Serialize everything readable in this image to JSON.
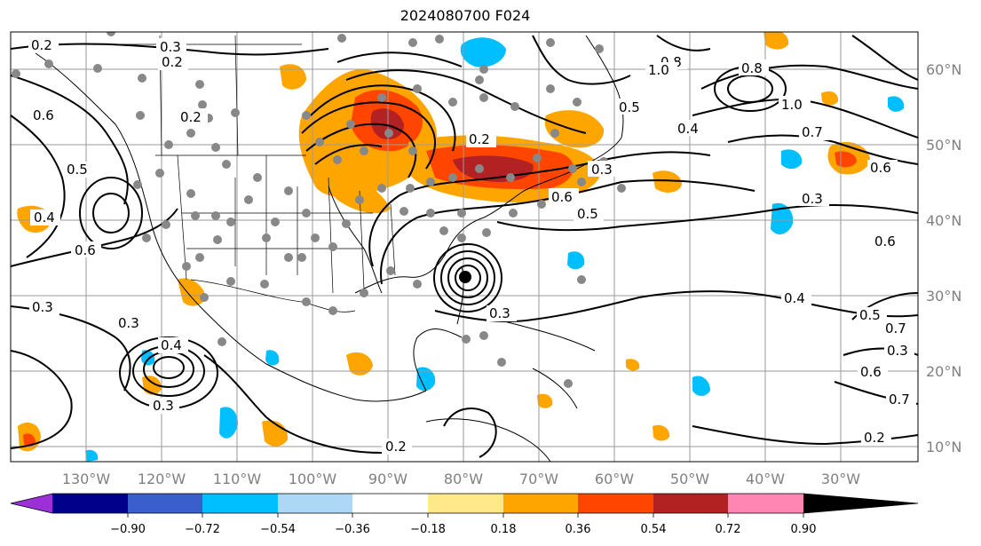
{
  "title": "2024080700 F024",
  "map": {
    "lon_labels": [
      "130°W",
      "120°W",
      "110°W",
      "100°W",
      "90°W",
      "80°W",
      "70°W",
      "60°W",
      "50°W",
      "40°W",
      "30°W"
    ],
    "lat_labels": [
      "60°N",
      "50°N",
      "40°N",
      "30°N",
      "20°N",
      "10°N"
    ],
    "contour_labels": [
      "0.2",
      "0.3",
      "0.2",
      "0.6",
      "0.5",
      "0.4",
      "0.6",
      "0.3",
      "0.4",
      "0.3",
      "0.2",
      "0.2",
      "0.5",
      "0.4",
      "0.6",
      "0.5",
      "0.3",
      "1.0",
      "0.7",
      "0.6",
      "0.3",
      "0.6",
      "0.4",
      "0.5",
      "0.7",
      "0.3",
      "0.6",
      "0.7",
      "0.2",
      "0.3",
      "0.3",
      "0.2",
      "0.8",
      "1.0",
      "0.8"
    ],
    "colorbar": {
      "tick_labels": [
        "−0.90",
        "−0.72",
        "−0.54",
        "−0.36",
        "−0.18",
        "0.18",
        "0.36",
        "0.54",
        "0.72",
        "0.90"
      ],
      "colors": [
        "#9b30d8",
        "#00008b",
        "#3a5fcd",
        "#00bfff",
        "#add8f5",
        "#ffffff",
        "#ffe88a",
        "#ffa500",
        "#ff4500",
        "#b22222",
        "#ff85b3"
      ]
    }
  }
}
